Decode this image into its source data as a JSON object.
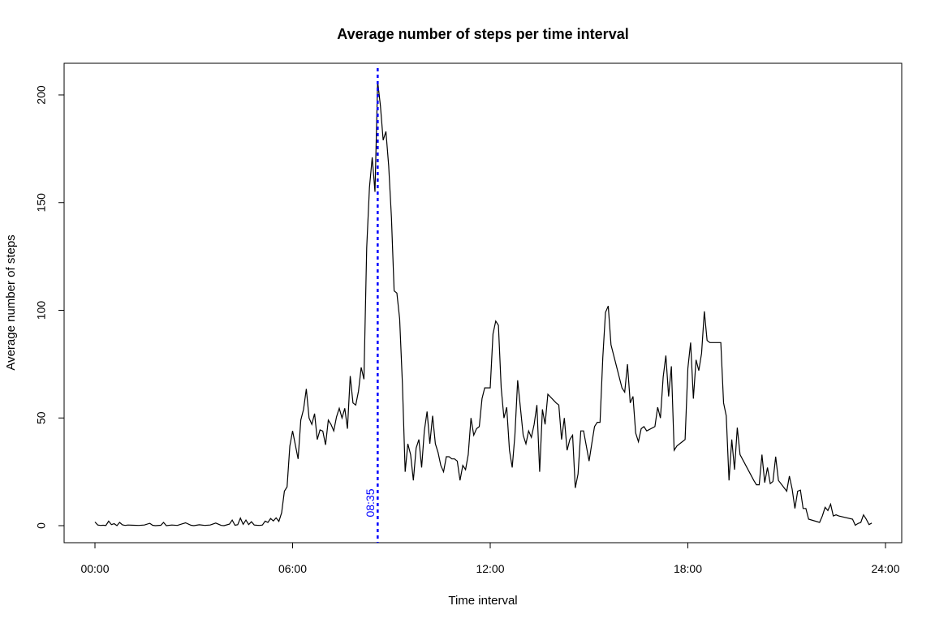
{
  "chart_data": {
    "type": "line",
    "title": "Average number of steps per time interval",
    "xlabel": "Time interval",
    "ylabel": "Average number of steps",
    "xlim": [
      "00:00",
      "24:00"
    ],
    "ylim": [
      0,
      210
    ],
    "x_ticks": [
      "00:00",
      "06:00",
      "12:00",
      "18:00",
      "24:00"
    ],
    "y_ticks": [
      0,
      50,
      100,
      150,
      200
    ],
    "line_color": "#000000",
    "annotation": {
      "label": "08:35",
      "x": "08:35",
      "color": "#0000ff",
      "style": "dotted"
    },
    "grid": false,
    "series": [
      {
        "points": [
          [
            "00:00",
            1.7
          ],
          [
            "00:05",
            0.3
          ],
          [
            "00:10",
            0.1
          ],
          [
            "00:15",
            0.2
          ],
          [
            "00:20",
            0.1
          ],
          [
            "00:25",
            2.1
          ],
          [
            "00:30",
            0.5
          ],
          [
            "00:35",
            0.9
          ],
          [
            "00:40",
            0
          ],
          [
            "00:45",
            1.5
          ],
          [
            "00:50",
            0.4
          ],
          [
            "00:55",
            0.1
          ],
          [
            "01:00",
            0.3
          ],
          [
            "01:10",
            0.2
          ],
          [
            "01:20",
            0.1
          ],
          [
            "01:30",
            0.3
          ],
          [
            "01:40",
            1.1
          ],
          [
            "01:45",
            0.2
          ],
          [
            "01:50",
            0
          ],
          [
            "02:00",
            0.2
          ],
          [
            "02:05",
            1.5
          ],
          [
            "02:10",
            0
          ],
          [
            "02:20",
            0.3
          ],
          [
            "02:30",
            0.1
          ],
          [
            "02:40",
            0.9
          ],
          [
            "02:45",
            1.3
          ],
          [
            "02:55",
            0.2
          ],
          [
            "03:00",
            0
          ],
          [
            "03:10",
            0.4
          ],
          [
            "03:20",
            0.1
          ],
          [
            "03:30",
            0.3
          ],
          [
            "03:40",
            1.2
          ],
          [
            "03:50",
            0.1
          ],
          [
            "03:55",
            0
          ],
          [
            "04:05",
            0.7
          ],
          [
            "04:10",
            2.6
          ],
          [
            "04:15",
            0.2
          ],
          [
            "04:20",
            0.4
          ],
          [
            "04:25",
            3.5
          ],
          [
            "04:30",
            0.6
          ],
          [
            "04:35",
            2.6
          ],
          [
            "04:40",
            0.5
          ],
          [
            "04:45",
            1.8
          ],
          [
            "04:50",
            0.3
          ],
          [
            "04:55",
            0.2
          ],
          [
            "05:00",
            0.1
          ],
          [
            "05:05",
            0.3
          ],
          [
            "05:10",
            2.1
          ],
          [
            "05:15",
            1.5
          ],
          [
            "05:20",
            3.3
          ],
          [
            "05:25",
            2.2
          ],
          [
            "05:30",
            3.6
          ],
          [
            "05:35",
            2
          ],
          [
            "05:40",
            6
          ],
          [
            "05:45",
            16
          ],
          [
            "05:50",
            18
          ],
          [
            "05:55",
            37
          ],
          [
            "06:00",
            44
          ],
          [
            "06:10",
            31
          ],
          [
            "06:15",
            49
          ],
          [
            "06:20",
            54
          ],
          [
            "06:25",
            63.5
          ],
          [
            "06:30",
            50
          ],
          [
            "06:35",
            47
          ],
          [
            "06:40",
            52
          ],
          [
            "06:45",
            40
          ],
          [
            "06:50",
            44.5
          ],
          [
            "06:55",
            43.9
          ],
          [
            "07:00",
            37.5
          ],
          [
            "07:05",
            49
          ],
          [
            "07:10",
            47
          ],
          [
            "07:15",
            44
          ],
          [
            "07:20",
            50.5
          ],
          [
            "07:25",
            54.5
          ],
          [
            "07:30",
            50
          ],
          [
            "07:35",
            54.5
          ],
          [
            "07:40",
            45
          ],
          [
            "07:45",
            69.5
          ],
          [
            "07:50",
            57
          ],
          [
            "07:55",
            56
          ],
          [
            "08:00",
            62.5
          ],
          [
            "08:05",
            73.5
          ],
          [
            "08:10",
            68
          ],
          [
            "08:15",
            129
          ],
          [
            "08:20",
            157
          ],
          [
            "08:25",
            171
          ],
          [
            "08:30",
            155
          ],
          [
            "08:35",
            206.2
          ],
          [
            "08:40",
            195
          ],
          [
            "08:45",
            179
          ],
          [
            "08:50",
            183
          ],
          [
            "08:55",
            167
          ],
          [
            "09:00",
            143
          ],
          [
            "09:05",
            109
          ],
          [
            "09:10",
            108
          ],
          [
            "09:15",
            96
          ],
          [
            "09:20",
            66
          ],
          [
            "09:25",
            25
          ],
          [
            "09:30",
            38
          ],
          [
            "09:35",
            33
          ],
          [
            "09:40",
            21
          ],
          [
            "09:45",
            36
          ],
          [
            "09:50",
            40
          ],
          [
            "09:55",
            27
          ],
          [
            "10:00",
            44
          ],
          [
            "10:05",
            53
          ],
          [
            "10:10",
            38
          ],
          [
            "10:15",
            51
          ],
          [
            "10:20",
            38
          ],
          [
            "10:25",
            34
          ],
          [
            "10:30",
            28
          ],
          [
            "10:35",
            25
          ],
          [
            "10:40",
            32
          ],
          [
            "10:45",
            32
          ],
          [
            "10:50",
            31
          ],
          [
            "10:55",
            31
          ],
          [
            "11:00",
            30
          ],
          [
            "11:05",
            21
          ],
          [
            "11:10",
            28
          ],
          [
            "11:15",
            26
          ],
          [
            "11:20",
            33
          ],
          [
            "11:25",
            50
          ],
          [
            "11:30",
            42
          ],
          [
            "11:35",
            45
          ],
          [
            "11:40",
            46
          ],
          [
            "11:45",
            59
          ],
          [
            "11:50",
            64
          ],
          [
            "12:00",
            64
          ],
          [
            "12:05",
            89
          ],
          [
            "12:10",
            95
          ],
          [
            "12:15",
            93
          ],
          [
            "12:20",
            64
          ],
          [
            "12:25",
            50
          ],
          [
            "12:30",
            55
          ],
          [
            "12:35",
            35
          ],
          [
            "12:40",
            27
          ],
          [
            "12:45",
            42
          ],
          [
            "12:50",
            67.5
          ],
          [
            "13:00",
            42
          ],
          [
            "13:05",
            38
          ],
          [
            "13:10",
            44
          ],
          [
            "13:15",
            41
          ],
          [
            "13:20",
            47
          ],
          [
            "13:25",
            56
          ],
          [
            "13:30",
            25
          ],
          [
            "13:35",
            54
          ],
          [
            "13:40",
            47
          ],
          [
            "13:45",
            61
          ],
          [
            "14:00",
            57
          ],
          [
            "14:05",
            56
          ],
          [
            "14:10",
            40
          ],
          [
            "14:15",
            50
          ],
          [
            "14:20",
            35
          ],
          [
            "14:25",
            40
          ],
          [
            "14:30",
            42
          ],
          [
            "14:35",
            17.5
          ],
          [
            "14:40",
            24
          ],
          [
            "14:45",
            44
          ],
          [
            "14:50",
            44
          ],
          [
            "15:00",
            30
          ],
          [
            "15:05",
            38
          ],
          [
            "15:10",
            46
          ],
          [
            "15:15",
            48
          ],
          [
            "15:20",
            48
          ],
          [
            "15:25",
            78
          ],
          [
            "15:30",
            99
          ],
          [
            "15:35",
            102
          ],
          [
            "15:40",
            84
          ],
          [
            "16:00",
            64
          ],
          [
            "16:05",
            62
          ],
          [
            "16:10",
            75
          ],
          [
            "16:15",
            57
          ],
          [
            "16:20",
            60
          ],
          [
            "16:25",
            43
          ],
          [
            "16:30",
            39
          ],
          [
            "16:35",
            45
          ],
          [
            "16:40",
            46
          ],
          [
            "16:45",
            44
          ],
          [
            "17:00",
            46
          ],
          [
            "17:05",
            55
          ],
          [
            "17:10",
            50
          ],
          [
            "17:15",
            69
          ],
          [
            "17:20",
            79
          ],
          [
            "17:25",
            60
          ],
          [
            "17:30",
            74
          ],
          [
            "17:35",
            35
          ],
          [
            "17:40",
            37
          ],
          [
            "17:50",
            39
          ],
          [
            "17:55",
            40
          ],
          [
            "18:00",
            73
          ],
          [
            "18:05",
            85
          ],
          [
            "18:10",
            59
          ],
          [
            "18:15",
            77
          ],
          [
            "18:20",
            72
          ],
          [
            "18:25",
            80
          ],
          [
            "18:30",
            99.5
          ],
          [
            "18:35",
            86
          ],
          [
            "18:40",
            85
          ],
          [
            "19:00",
            85
          ],
          [
            "19:05",
            57
          ],
          [
            "19:10",
            51
          ],
          [
            "19:15",
            21
          ],
          [
            "19:20",
            40
          ],
          [
            "19:25",
            26
          ],
          [
            "19:30",
            45.5
          ],
          [
            "19:35",
            33
          ],
          [
            "20:00",
            21
          ],
          [
            "20:05",
            19
          ],
          [
            "20:10",
            19
          ],
          [
            "20:15",
            33
          ],
          [
            "20:20",
            20
          ],
          [
            "20:25",
            27
          ],
          [
            "20:30",
            19.5
          ],
          [
            "20:35",
            20.5
          ],
          [
            "20:40",
            32
          ],
          [
            "20:45",
            21
          ],
          [
            "21:00",
            16
          ],
          [
            "21:05",
            23
          ],
          [
            "21:10",
            17
          ],
          [
            "21:15",
            8
          ],
          [
            "21:20",
            16
          ],
          [
            "21:25",
            16.5
          ],
          [
            "21:30",
            8
          ],
          [
            "21:35",
            8
          ],
          [
            "21:40",
            3
          ],
          [
            "22:00",
            1.5
          ],
          [
            "22:05",
            4.5
          ],
          [
            "22:10",
            8.5
          ],
          [
            "22:15",
            7
          ],
          [
            "22:20",
            10
          ],
          [
            "22:25",
            4.5
          ],
          [
            "22:30",
            5
          ],
          [
            "22:35",
            4.5
          ],
          [
            "23:00",
            3
          ],
          [
            "23:05",
            0.2
          ],
          [
            "23:10",
            1
          ],
          [
            "23:15",
            1.5
          ],
          [
            "23:20",
            5
          ],
          [
            "23:25",
            3
          ],
          [
            "23:30",
            0.5
          ],
          [
            "23:35",
            1.2
          ]
        ]
      }
    ]
  }
}
